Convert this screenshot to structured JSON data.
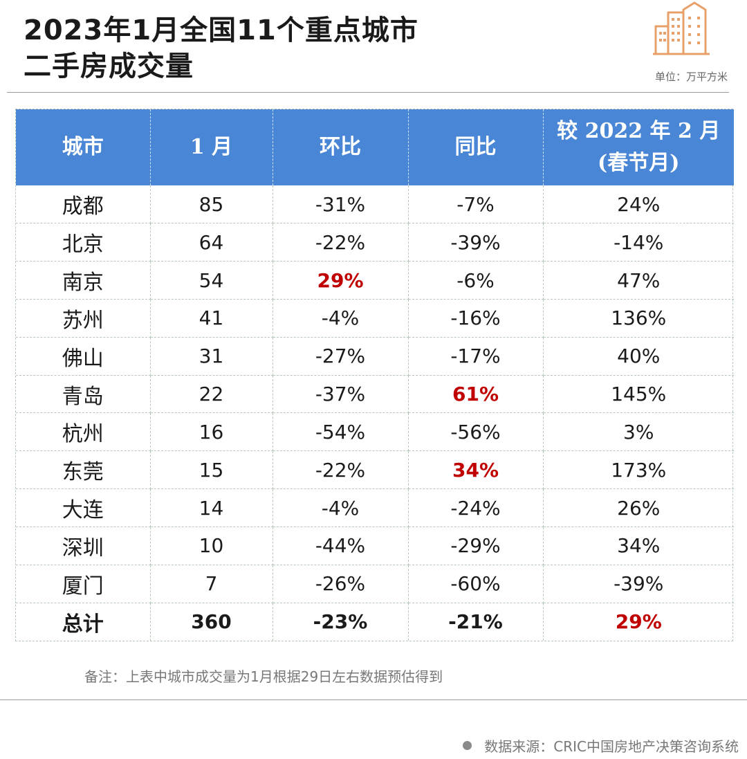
{
  "title": {
    "line1": "2023年1月全国11个重点城市",
    "line2": "二手房成交量"
  },
  "unit": "单位：万平方米",
  "logo_icon": "buildings-icon",
  "colors": {
    "header_bg": "#4a86d6",
    "highlight": "#c00000",
    "logo": "#e8a06a"
  },
  "chart_data": {
    "type": "table",
    "columns": [
      {
        "line1": "城市",
        "line2": ""
      },
      {
        "line1": "1 月",
        "line2": ""
      },
      {
        "line1": "环比",
        "line2": ""
      },
      {
        "line1": "同比",
        "line2": ""
      },
      {
        "line1": "较 2022 年 2 月",
        "line2": "(春节月)"
      }
    ],
    "rows": [
      {
        "city": "成都",
        "jan": "85",
        "mom": "-31%",
        "yoy": "-7%",
        "vs_feb": "24%",
        "highlight": []
      },
      {
        "city": "北京",
        "jan": "64",
        "mom": "-22%",
        "yoy": "-39%",
        "vs_feb": "-14%",
        "highlight": []
      },
      {
        "city": "南京",
        "jan": "54",
        "mom": "29%",
        "yoy": "-6%",
        "vs_feb": "47%",
        "highlight": [
          "mom"
        ]
      },
      {
        "city": "苏州",
        "jan": "41",
        "mom": "-4%",
        "yoy": "-16%",
        "vs_feb": "136%",
        "highlight": []
      },
      {
        "city": "佛山",
        "jan": "31",
        "mom": "-27%",
        "yoy": "-17%",
        "vs_feb": "40%",
        "highlight": []
      },
      {
        "city": "青岛",
        "jan": "22",
        "mom": "-37%",
        "yoy": "61%",
        "vs_feb": "145%",
        "highlight": [
          "yoy"
        ]
      },
      {
        "city": "杭州",
        "jan": "16",
        "mom": "-54%",
        "yoy": "-56%",
        "vs_feb": "3%",
        "highlight": []
      },
      {
        "city": "东莞",
        "jan": "15",
        "mom": "-22%",
        "yoy": "34%",
        "vs_feb": "173%",
        "highlight": [
          "yoy"
        ]
      },
      {
        "city": "大连",
        "jan": "14",
        "mom": "-4%",
        "yoy": "-24%",
        "vs_feb": "26%",
        "highlight": []
      },
      {
        "city": "深圳",
        "jan": "10",
        "mom": "-44%",
        "yoy": "-29%",
        "vs_feb": "34%",
        "highlight": []
      },
      {
        "city": "厦门",
        "jan": "7",
        "mom": "-26%",
        "yoy": "-60%",
        "vs_feb": "-39%",
        "highlight": []
      }
    ],
    "total": {
      "city": "总计",
      "jan": "360",
      "mom": "-23%",
      "yoy": "-21%",
      "vs_feb": "29%",
      "highlight": [
        "vs_feb"
      ]
    }
  },
  "note": "备注：上表中城市成交量为1月根据29日左右数据预估得到",
  "source": "数据来源：CRIC中国房地产决策咨询系统"
}
